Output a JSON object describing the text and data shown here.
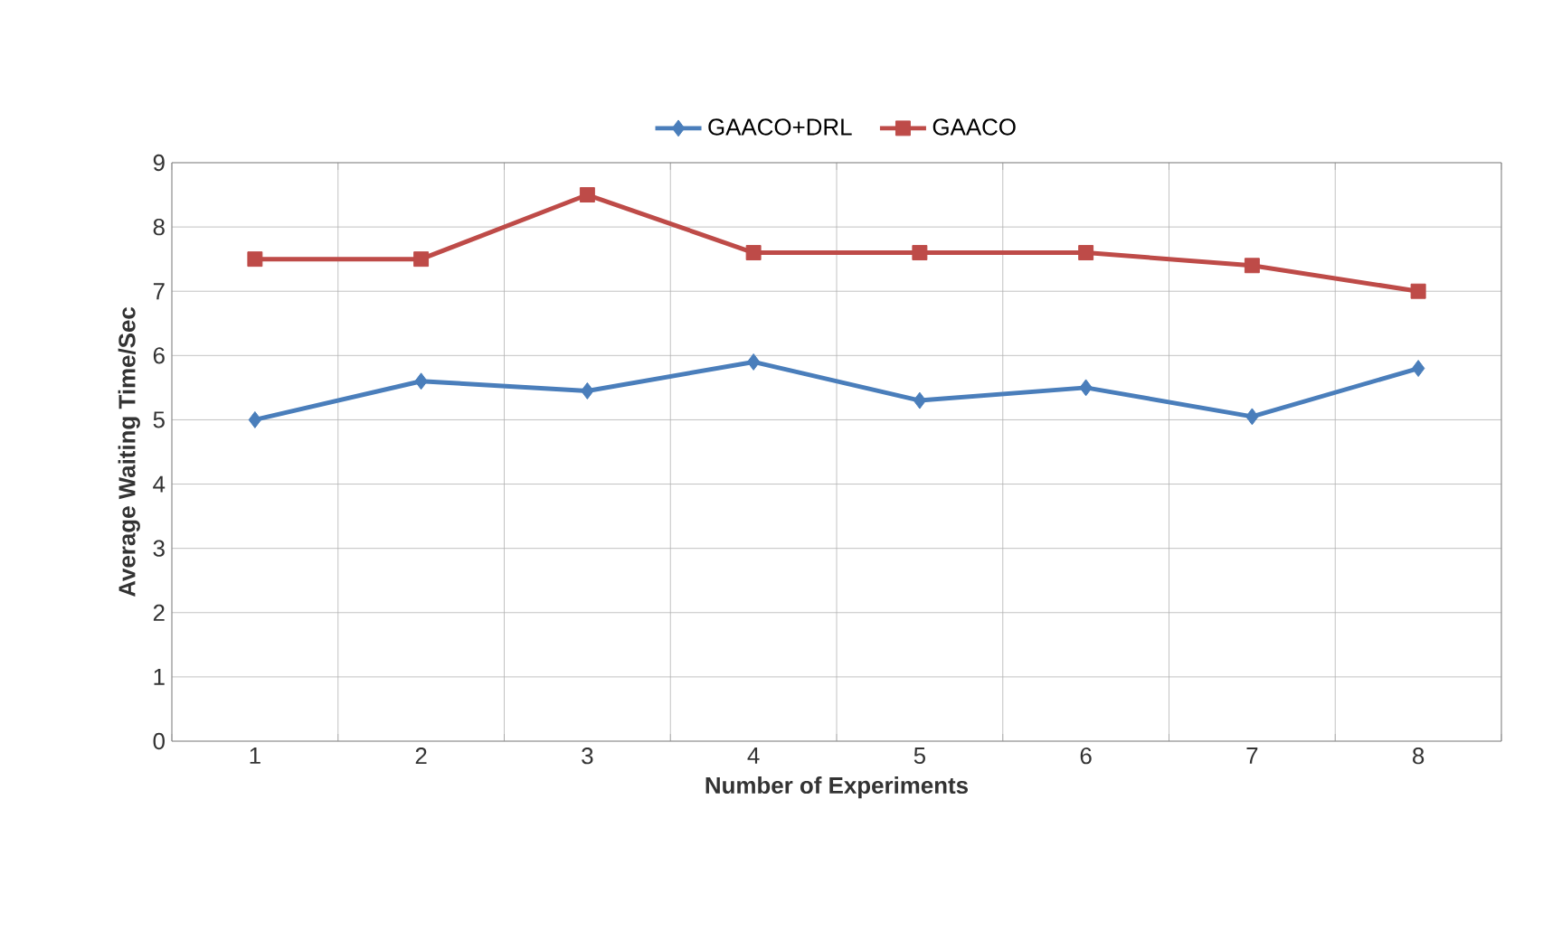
{
  "chart_data": {
    "type": "line",
    "xlabel": "Number of Experiments",
    "ylabel": "Average Waiting Time/Sec",
    "categories": [
      "1",
      "2",
      "3",
      "4",
      "5",
      "6",
      "7",
      "8"
    ],
    "series": [
      {
        "name": "GAACO+DRL",
        "color": "#4a7ebb",
        "marker": "diamond",
        "values": [
          5.0,
          5.6,
          5.45,
          5.9,
          5.3,
          5.5,
          5.05,
          5.8
        ]
      },
      {
        "name": "GAACO",
        "color": "#be4b48",
        "marker": "square",
        "values": [
          7.5,
          7.5,
          8.5,
          7.6,
          7.6,
          7.6,
          7.4,
          7.0
        ]
      }
    ],
    "ylim": [
      0,
      9
    ],
    "yticks": [
      0,
      1,
      2,
      3,
      4,
      5,
      6,
      7,
      8,
      9
    ],
    "grid": true,
    "legend": "top",
    "line_style": "solid"
  }
}
